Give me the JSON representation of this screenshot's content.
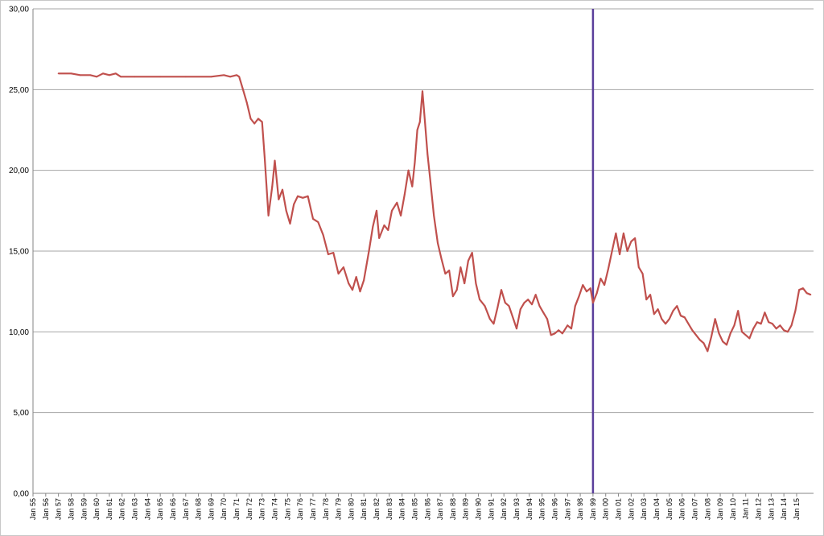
{
  "chart_data": {
    "type": "line",
    "title": "",
    "xlabel": "",
    "ylabel": "",
    "ylim": [
      0,
      30
    ],
    "y_ticks": [
      "0,00",
      "5,00",
      "10,00",
      "15,00",
      "20,00",
      "25,00",
      "30,00"
    ],
    "grid": "horizontal",
    "legend": "none",
    "x_tick_labels": [
      "Jan 55",
      "Jan 56",
      "Jan 57",
      "Jan 58",
      "Jan 59",
      "Jan 60",
      "Jan 61",
      "Jan 62",
      "Jan 63",
      "Jan 64",
      "Jan 65",
      "Jan 66",
      "Jan 67",
      "Jan 68",
      "Jan 69",
      "Jan 70",
      "Jan 71",
      "Jan 72",
      "Jan 73",
      "Jan 74",
      "Jan 75",
      "Jan 76",
      "Jan 77",
      "Jan 78",
      "Jan 79",
      "Jan 80",
      "Jan 81",
      "Jan 82",
      "Jan 83",
      "Jan 84",
      "Jan 85",
      "Jan 86",
      "Jan 87",
      "Jan 88",
      "Jan 89",
      "Jan 90",
      "Jan 91",
      "Jan 92",
      "Jan 93",
      "Jan 94",
      "Jan 95",
      "Jan 96",
      "Jan 97",
      "Jan 98",
      "Jan 99",
      "Jan 00",
      "Jan 01",
      "Jan 02",
      "Jan 03",
      "Jan 04",
      "Jan 05",
      "Jan 06",
      "Jan 07",
      "Jan 08",
      "Jan 09",
      "Jan 10",
      "Jan 11",
      "Jan 12",
      "Jan 13",
      "Jan 14",
      "Jan 15"
    ],
    "vertical_marker": {
      "x": 1999.0,
      "color": "#5b3f9b"
    },
    "series": [
      {
        "color": "#c0504d",
        "points": [
          [
            1957.0,
            26.0
          ],
          [
            1958.0,
            26.0
          ],
          [
            1958.7,
            25.9
          ],
          [
            1959.5,
            25.9
          ],
          [
            1960.0,
            25.8
          ],
          [
            1960.5,
            26.0
          ],
          [
            1961.0,
            25.9
          ],
          [
            1961.5,
            26.0
          ],
          [
            1961.9,
            25.8
          ],
          [
            1963.0,
            25.8
          ],
          [
            1965.0,
            25.8
          ],
          [
            1967.0,
            25.8
          ],
          [
            1969.0,
            25.8
          ],
          [
            1970.0,
            25.9
          ],
          [
            1970.5,
            25.8
          ],
          [
            1971.0,
            25.9
          ],
          [
            1971.2,
            25.8
          ],
          [
            1971.5,
            25.0
          ],
          [
            1971.8,
            24.2
          ],
          [
            1972.1,
            23.2
          ],
          [
            1972.4,
            22.9
          ],
          [
            1972.7,
            23.2
          ],
          [
            1973.0,
            23.0
          ],
          [
            1973.2,
            20.8
          ],
          [
            1973.5,
            17.2
          ],
          [
            1973.8,
            19.0
          ],
          [
            1974.0,
            20.6
          ],
          [
            1974.3,
            18.2
          ],
          [
            1974.6,
            18.8
          ],
          [
            1974.9,
            17.5
          ],
          [
            1975.2,
            16.7
          ],
          [
            1975.5,
            17.9
          ],
          [
            1975.8,
            18.4
          ],
          [
            1976.2,
            18.3
          ],
          [
            1976.6,
            18.4
          ],
          [
            1977.0,
            17.0
          ],
          [
            1977.4,
            16.8
          ],
          [
            1977.8,
            16.0
          ],
          [
            1978.2,
            14.8
          ],
          [
            1978.6,
            14.9
          ],
          [
            1979.0,
            13.6
          ],
          [
            1979.4,
            14.0
          ],
          [
            1979.8,
            13.0
          ],
          [
            1980.1,
            12.6
          ],
          [
            1980.4,
            13.4
          ],
          [
            1980.7,
            12.5
          ],
          [
            1981.0,
            13.2
          ],
          [
            1981.4,
            15.0
          ],
          [
            1981.7,
            16.5
          ],
          [
            1982.0,
            17.5
          ],
          [
            1982.2,
            15.8
          ],
          [
            1982.6,
            16.6
          ],
          [
            1982.9,
            16.3
          ],
          [
            1983.2,
            17.5
          ],
          [
            1983.6,
            18.0
          ],
          [
            1983.9,
            17.2
          ],
          [
            1984.2,
            18.5
          ],
          [
            1984.5,
            20.0
          ],
          [
            1984.8,
            19.0
          ],
          [
            1985.0,
            20.5
          ],
          [
            1985.2,
            22.5
          ],
          [
            1985.4,
            23.0
          ],
          [
            1985.6,
            24.9
          ],
          [
            1985.8,
            23.0
          ],
          [
            1986.0,
            21.0
          ],
          [
            1986.2,
            19.5
          ],
          [
            1986.5,
            17.2
          ],
          [
            1986.8,
            15.5
          ],
          [
            1987.1,
            14.5
          ],
          [
            1987.4,
            13.6
          ],
          [
            1987.7,
            13.8
          ],
          [
            1988.0,
            12.2
          ],
          [
            1988.3,
            12.6
          ],
          [
            1988.6,
            14.0
          ],
          [
            1988.9,
            13.0
          ],
          [
            1989.2,
            14.4
          ],
          [
            1989.5,
            14.9
          ],
          [
            1989.8,
            13.0
          ],
          [
            1990.1,
            12.0
          ],
          [
            1990.5,
            11.6
          ],
          [
            1990.9,
            10.8
          ],
          [
            1991.2,
            10.5
          ],
          [
            1991.5,
            11.5
          ],
          [
            1991.8,
            12.6
          ],
          [
            1992.1,
            11.8
          ],
          [
            1992.4,
            11.6
          ],
          [
            1992.7,
            10.9
          ],
          [
            1993.0,
            10.2
          ],
          [
            1993.3,
            11.4
          ],
          [
            1993.6,
            11.8
          ],
          [
            1993.9,
            12.0
          ],
          [
            1994.2,
            11.7
          ],
          [
            1994.5,
            12.3
          ],
          [
            1994.8,
            11.6
          ],
          [
            1995.1,
            11.2
          ],
          [
            1995.4,
            10.8
          ],
          [
            1995.7,
            9.8
          ],
          [
            1996.0,
            9.9
          ],
          [
            1996.3,
            10.1
          ],
          [
            1996.6,
            9.9
          ],
          [
            1997.0,
            10.4
          ],
          [
            1997.3,
            10.2
          ],
          [
            1997.6,
            11.6
          ],
          [
            1997.9,
            12.2
          ],
          [
            1998.2,
            12.9
          ],
          [
            1998.5,
            12.5
          ],
          [
            1998.8,
            12.7
          ],
          [
            1999.0,
            11.8
          ],
          [
            1999.3,
            12.4
          ],
          [
            1999.6,
            13.3
          ],
          [
            1999.9,
            12.9
          ],
          [
            2000.2,
            13.9
          ],
          [
            2000.5,
            15.0
          ],
          [
            2000.8,
            16.1
          ],
          [
            2001.1,
            14.8
          ],
          [
            2001.4,
            16.1
          ],
          [
            2001.7,
            15.0
          ],
          [
            2002.0,
            15.6
          ],
          [
            2002.3,
            15.8
          ],
          [
            2002.6,
            14.0
          ],
          [
            2002.9,
            13.6
          ],
          [
            2003.2,
            12.0
          ],
          [
            2003.5,
            12.3
          ],
          [
            2003.8,
            11.1
          ],
          [
            2004.1,
            11.4
          ],
          [
            2004.4,
            10.8
          ],
          [
            2004.7,
            10.5
          ],
          [
            2005.0,
            10.8
          ],
          [
            2005.3,
            11.3
          ],
          [
            2005.6,
            11.6
          ],
          [
            2005.9,
            11.0
          ],
          [
            2006.2,
            10.9
          ],
          [
            2006.5,
            10.5
          ],
          [
            2006.8,
            10.1
          ],
          [
            2007.1,
            9.8
          ],
          [
            2007.4,
            9.5
          ],
          [
            2007.7,
            9.3
          ],
          [
            2008.0,
            8.8
          ],
          [
            2008.3,
            9.7
          ],
          [
            2008.6,
            10.8
          ],
          [
            2008.9,
            9.9
          ],
          [
            2009.2,
            9.4
          ],
          [
            2009.5,
            9.2
          ],
          [
            2009.8,
            9.9
          ],
          [
            2010.1,
            10.4
          ],
          [
            2010.4,
            11.3
          ],
          [
            2010.7,
            10.0
          ],
          [
            2011.0,
            9.8
          ],
          [
            2011.3,
            9.6
          ],
          [
            2011.6,
            10.2
          ],
          [
            2011.9,
            10.6
          ],
          [
            2012.2,
            10.5
          ],
          [
            2012.5,
            11.2
          ],
          [
            2012.8,
            10.6
          ],
          [
            2013.1,
            10.5
          ],
          [
            2013.4,
            10.2
          ],
          [
            2013.7,
            10.4
          ],
          [
            2014.0,
            10.1
          ],
          [
            2014.3,
            10.0
          ],
          [
            2014.6,
            10.4
          ],
          [
            2014.9,
            11.3
          ],
          [
            2015.2,
            12.6
          ],
          [
            2015.5,
            12.7
          ],
          [
            2015.8,
            12.4
          ],
          [
            2016.1,
            12.3
          ]
        ]
      }
    ]
  }
}
